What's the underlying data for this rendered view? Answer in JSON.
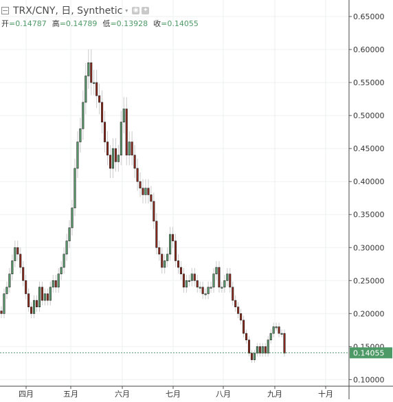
{
  "header": {
    "symbol_title": "TRX/CNY, 日, Synthetic",
    "ohlc": [
      {
        "label": "开",
        "value": "=0.14787"
      },
      {
        "label": "高",
        "value": "=0.14789"
      },
      {
        "label": "低",
        "value": "=0.13928"
      },
      {
        "label": "收",
        "value": "=0.14055"
      }
    ]
  },
  "price_axis": {
    "ticks": [
      "0.65000",
      "0.60000",
      "0.55000",
      "0.50000",
      "0.45000",
      "0.40000",
      "0.35000",
      "0.30000",
      "0.25000",
      "0.20000",
      "0.15000",
      "0.10000"
    ],
    "last_price_label": "0.14055"
  },
  "time_axis": {
    "ticks": [
      "四月",
      "五月",
      "六月",
      "七月",
      "八月",
      "九月",
      "十月"
    ]
  },
  "colors": {
    "up": "#5c9e70",
    "down": "#8e2a1e",
    "last_line": "#4e9a67",
    "grid": "#eef0f2"
  },
  "chart_data": {
    "type": "candlestick",
    "x_ticks": [
      "四月",
      "五月",
      "六月",
      "七月",
      "八月",
      "九月",
      "十月"
    ],
    "ylim": [
      0.09,
      0.675
    ],
    "y_ticks": [
      0.65,
      0.6,
      0.55,
      0.5,
      0.45,
      0.4,
      0.35,
      0.3,
      0.25,
      0.2,
      0.15,
      0.1
    ],
    "last_price": 0.14055,
    "close_series": [
      0.2,
      0.23,
      0.24,
      0.26,
      0.28,
      0.3,
      0.29,
      0.27,
      0.25,
      0.23,
      0.21,
      0.2,
      0.22,
      0.21,
      0.24,
      0.22,
      0.23,
      0.22,
      0.24,
      0.25,
      0.24,
      0.26,
      0.27,
      0.29,
      0.31,
      0.33,
      0.36,
      0.42,
      0.46,
      0.48,
      0.52,
      0.56,
      0.58,
      0.55,
      0.55,
      0.53,
      0.52,
      0.49,
      0.46,
      0.44,
      0.42,
      0.45,
      0.43,
      0.44,
      0.49,
      0.51,
      0.44,
      0.46,
      0.44,
      0.42,
      0.4,
      0.39,
      0.38,
      0.39,
      0.38,
      0.37,
      0.34,
      0.3,
      0.29,
      0.27,
      0.28,
      0.29,
      0.32,
      0.31,
      0.28,
      0.27,
      0.26,
      0.24,
      0.25,
      0.25,
      0.26,
      0.25,
      0.24,
      0.24,
      0.23,
      0.23,
      0.24,
      0.24,
      0.26,
      0.27,
      0.24,
      0.24,
      0.25,
      0.26,
      0.24,
      0.22,
      0.21,
      0.2,
      0.19,
      0.17,
      0.16,
      0.14,
      0.13,
      0.14,
      0.15,
      0.14,
      0.15,
      0.14,
      0.16,
      0.17,
      0.18,
      0.18,
      0.17,
      0.17,
      0.14
    ]
  }
}
